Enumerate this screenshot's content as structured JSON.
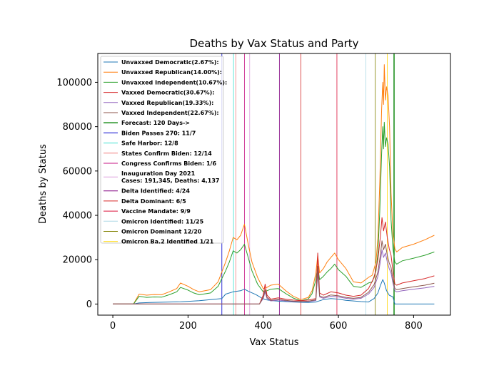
{
  "chart_data": {
    "type": "line",
    "title": "Deaths by Vax Status and Party",
    "xlabel": "Vax Status",
    "ylabel": "Deaths by Status",
    "xlim": [
      -40,
      898
    ],
    "ylim": [
      -5000,
      113000
    ],
    "xticks": [
      0,
      200,
      400,
      600,
      800
    ],
    "yticks": [
      0,
      20000,
      40000,
      60000,
      80000,
      100000
    ],
    "grid": false,
    "legend_position": "top-left",
    "series": [
      {
        "name": "Unvaxxed Democratic(2.67%):",
        "color": "#1f77b4",
        "x": [
          0,
          55,
          70,
          100,
          150,
          180,
          230,
          260,
          290,
          300,
          320,
          340,
          350,
          360,
          380,
          395,
          405,
          420,
          440,
          460,
          480,
          500,
          520,
          540,
          545,
          560,
          580,
          600,
          620,
          640,
          660,
          680,
          695,
          705,
          712,
          718,
          722,
          728,
          735,
          745,
          750,
          800,
          855
        ],
        "y": [
          0,
          0,
          500,
          700,
          900,
          1000,
          1500,
          2000,
          2500,
          4500,
          5500,
          6000,
          6700,
          5800,
          4300,
          2800,
          2000,
          1600,
          1300,
          1100,
          900,
          800,
          700,
          900,
          1200,
          2000,
          2500,
          2200,
          1700,
          1400,
          1100,
          900,
          2500,
          5000,
          8500,
          11000,
          9500,
          6000,
          4000,
          3200,
          0,
          0,
          0
        ]
      },
      {
        "name": "Unvaxxed Republican(14.00%):",
        "color": "#ff7f0e",
        "x": [
          0,
          55,
          70,
          90,
          110,
          130,
          150,
          170,
          180,
          200,
          215,
          230,
          260,
          280,
          300,
          310,
          320,
          330,
          340,
          350,
          360,
          370,
          385,
          400,
          410,
          420,
          440,
          460,
          480,
          500,
          520,
          530,
          540,
          545,
          550,
          560,
          570,
          580,
          590,
          600,
          620,
          640,
          660,
          680,
          690,
          700,
          705,
          710,
          715,
          718,
          720,
          722,
          725,
          728,
          732,
          736,
          740,
          745,
          750,
          755,
          770,
          800,
          830,
          855
        ],
        "y": [
          0,
          0,
          4500,
          4000,
          4300,
          4200,
          5500,
          7000,
          9500,
          8000,
          6500,
          5500,
          6500,
          10000,
          19000,
          24000,
          30000,
          29000,
          31000,
          36000,
          27000,
          19000,
          12000,
          7000,
          7500,
          8500,
          9000,
          6000,
          3500,
          2000,
          3000,
          6000,
          14000,
          22000,
          14000,
          16000,
          19000,
          21000,
          23000,
          20000,
          16000,
          10000,
          9500,
          12000,
          13000,
          19000,
          30000,
          55000,
          88000,
          100000,
          90000,
          108000,
          92000,
          98000,
          94000,
          80000,
          50000,
          32000,
          25000,
          23500,
          25500,
          27000,
          29000,
          31000
        ]
      },
      {
        "name": "Unvaxxed Independent(10.67%):",
        "color": "#2ca02c",
        "x": [
          0,
          55,
          70,
          90,
          110,
          130,
          150,
          170,
          180,
          200,
          215,
          230,
          260,
          280,
          300,
          310,
          320,
          330,
          340,
          350,
          360,
          370,
          385,
          400,
          410,
          420,
          440,
          460,
          480,
          500,
          520,
          530,
          540,
          545,
          550,
          560,
          570,
          580,
          590,
          600,
          620,
          640,
          660,
          680,
          690,
          700,
          705,
          710,
          715,
          718,
          720,
          722,
          725,
          728,
          732,
          736,
          740,
          745,
          750,
          755,
          770,
          800,
          830,
          855
        ],
        "y": [
          0,
          0,
          3500,
          3000,
          3200,
          3100,
          4200,
          5500,
          7500,
          6300,
          5000,
          4200,
          5000,
          8000,
          15000,
          19000,
          24000,
          23000,
          24500,
          27000,
          21000,
          15000,
          9000,
          5500,
          6000,
          6700,
          7000,
          4700,
          2700,
          1500,
          2300,
          4700,
          11000,
          17000,
          11000,
          12500,
          14500,
          16000,
          18000,
          15500,
          12500,
          8000,
          7500,
          9500,
          10000,
          15000,
          23000,
          42000,
          68000,
          80000,
          70000,
          82000,
          71000,
          75000,
          72000,
          62000,
          38000,
          25000,
          19000,
          18000,
          19500,
          20700,
          22000,
          23500
        ]
      },
      {
        "name": "Vaxxed Democratic(30.67%):",
        "color": "#d62728",
        "x": [
          0,
          390,
          400,
          405,
          410,
          420,
          440,
          460,
          480,
          500,
          520,
          540,
          545,
          550,
          560,
          580,
          600,
          620,
          640,
          660,
          680,
          695,
          705,
          712,
          716,
          720,
          725,
          730,
          735,
          740,
          745,
          750,
          755,
          770,
          800,
          830,
          855
        ],
        "y": [
          0,
          0,
          4000,
          9000,
          4000,
          2200,
          2800,
          2200,
          1800,
          1500,
          1800,
          2500,
          23000,
          5000,
          4000,
          5500,
          5000,
          4000,
          3500,
          4000,
          7000,
          12000,
          20000,
          31000,
          39000,
          33000,
          37000,
          30000,
          25000,
          22000,
          15000,
          9000,
          8500,
          9500,
          10500,
          11500,
          12700
        ]
      },
      {
        "name": "Vaxxed Republican(19.33%):",
        "color": "#9467bd",
        "x": [
          0,
          390,
          400,
          405,
          410,
          420,
          440,
          460,
          480,
          500,
          520,
          540,
          545,
          550,
          560,
          580,
          600,
          620,
          640,
          660,
          680,
          695,
          705,
          712,
          716,
          720,
          725,
          730,
          735,
          740,
          745,
          750,
          755,
          770,
          800,
          830,
          855
        ],
        "y": [
          0,
          0,
          2500,
          5500,
          2500,
          1400,
          1800,
          1400,
          1100,
          1000,
          1100,
          1600,
          14000,
          3200,
          2600,
          3500,
          3200,
          2600,
          2200,
          2600,
          4500,
          7500,
          12500,
          19500,
          24500,
          21000,
          23000,
          19000,
          16000,
          14000,
          9500,
          6000,
          5500,
          6000,
          6700,
          7300,
          8000
        ]
      },
      {
        "name": "Vaxxed Independent(22.67%):",
        "color": "#8c564b",
        "x": [
          0,
          390,
          400,
          405,
          410,
          420,
          440,
          460,
          480,
          500,
          520,
          540,
          545,
          550,
          560,
          580,
          600,
          620,
          640,
          660,
          680,
          695,
          705,
          712,
          716,
          720,
          725,
          730,
          735,
          740,
          745,
          750,
          755,
          770,
          800,
          830,
          855
        ],
        "y": [
          0,
          0,
          3000,
          6500,
          3000,
          1700,
          2100,
          1700,
          1300,
          1150,
          1300,
          1900,
          17000,
          3700,
          3000,
          4100,
          3700,
          3000,
          2600,
          3000,
          5300,
          8800,
          14500,
          22500,
          28500,
          24500,
          27000,
          22000,
          18500,
          16500,
          11000,
          7000,
          6500,
          7000,
          7800,
          8500,
          9400
        ]
      }
    ],
    "vertical_lines": [
      {
        "name": "Forecast: 120 Days->",
        "x": 748,
        "color": "#008000",
        "width": 1.4
      },
      {
        "name": "Biden Passes 270: 11/7",
        "x": 290,
        "color": "#0000cd",
        "width": 0.8
      },
      {
        "name": "Safe Harbor: 12/8",
        "x": 321,
        "color": "#40e0d0",
        "width": 0.8
      },
      {
        "name": "States Confirm Biden: 12/14",
        "x": 327,
        "color": "#f08080",
        "width": 0.8
      },
      {
        "name": "Congress Confirms Biden: 1/6",
        "x": 350,
        "color": "#c71585",
        "width": 0.8
      },
      {
        "name": "Inauguration Day 2021",
        "x": 364,
        "color": "#dda0dd",
        "width": 0.8
      },
      {
        "name": "Delta Identified: 4/24",
        "x": 443,
        "color": "#800080",
        "width": 0.8
      },
      {
        "name": "Delta Dominant: 6/5",
        "x": 500,
        "color": "#d62728",
        "width": 0.8
      },
      {
        "name": "Vaccine Mandate: 9/9",
        "x": 596,
        "color": "#dc143c",
        "width": 0.8
      },
      {
        "name": "Omicron Identified: 11/25",
        "x": 673,
        "color": "#add8e6",
        "width": 0.8
      },
      {
        "name": "Omicron Dominant 12/20",
        "x": 698,
        "color": "#808000",
        "width": 0.8
      },
      {
        "name": "Omicron Ba.2 Identified 1/21",
        "x": 730,
        "color": "#ffd700",
        "width": 0.8
      }
    ],
    "legend": [
      {
        "label": "Unvaxxed Democratic(2.67%):",
        "color": "#1f77b4"
      },
      {
        "label": "Unvaxxed Republican(14.00%):",
        "color": "#ff7f0e"
      },
      {
        "label": "Unvaxxed Independent(10.67%):",
        "color": "#2ca02c"
      },
      {
        "label": "Vaxxed Democratic(30.67%):",
        "color": "#d62728"
      },
      {
        "label": "Vaxxed Republican(19.33%):",
        "color": "#9467bd"
      },
      {
        "label": "Vaxxed Independent(22.67%):",
        "color": "#8c564b"
      },
      {
        "label": "Forecast: 120 Days->",
        "color": "#008000"
      },
      {
        "label": "Biden Passes 270: 11/7",
        "color": "#0000cd"
      },
      {
        "label": "Safe Harbor: 12/8",
        "color": "#40e0d0"
      },
      {
        "label": "States Confirm Biden: 12/14",
        "color": "#f08080"
      },
      {
        "label": "Congress Confirms Biden: 1/6",
        "color": "#c71585"
      },
      {
        "label": "Inauguration Day 2021",
        "label2": "Cases: 191,345, Deaths: 4,137",
        "color": "#dda0dd"
      },
      {
        "label": "Delta Identified: 4/24",
        "color": "#800080"
      },
      {
        "label": "Delta Dominant: 6/5",
        "color": "#d62728"
      },
      {
        "label": "Vaccine Mandate: 9/9",
        "color": "#dc143c"
      },
      {
        "label": "Omicron Identified: 11/25",
        "color": "#add8e6"
      },
      {
        "label": "Omicron Dominant 12/20",
        "color": "#808000"
      },
      {
        "label": "Omicron Ba.2 Identified 1/21",
        "color": "#ffd700"
      }
    ]
  }
}
